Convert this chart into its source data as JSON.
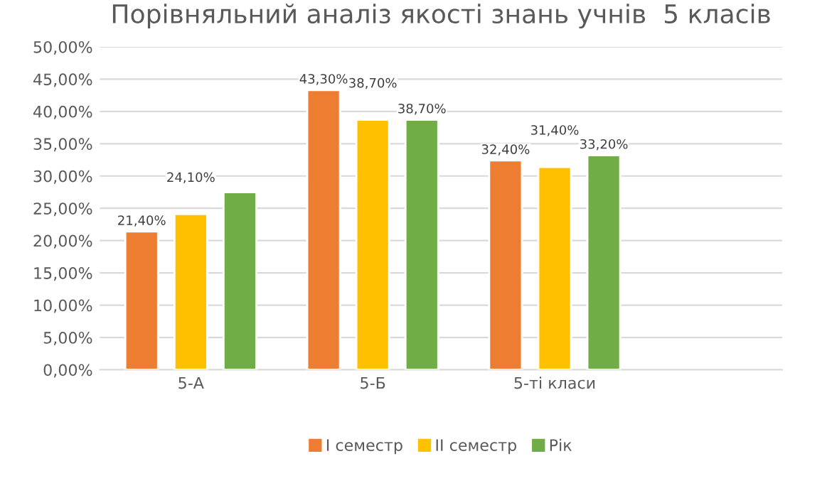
{
  "chart_data": {
    "type": "bar",
    "title": "Порівняльний аналіз якості знань учнів  5 класів",
    "categories": [
      "5-А",
      "5-Б",
      "5-ті класи"
    ],
    "series": [
      {
        "name": "І семестр",
        "color": "#ed7d31",
        "values": [
          21.4,
          43.3,
          32.4
        ],
        "value_labels": [
          "21,40%",
          "43,30%",
          "32,40%"
        ]
      },
      {
        "name": "ІІ семестр",
        "color": "#ffc000",
        "values": [
          24.1,
          38.7,
          31.4
        ],
        "value_labels": [
          "24,10%",
          "38,70%",
          "31,40%"
        ]
      },
      {
        "name": "Рік",
        "color": "#70ad47",
        "values": [
          27.5,
          38.7,
          33.2
        ],
        "value_labels": [
          null,
          "38,70%",
          "33,20%"
        ]
      }
    ],
    "ylim": [
      0,
      50
    ],
    "yticks": [
      {
        "value": 0,
        "label": "0,00%"
      },
      {
        "value": 5,
        "label": "5,00%"
      },
      {
        "value": 10,
        "label": "10,00%"
      },
      {
        "value": 15,
        "label": "15,00%"
      },
      {
        "value": 20,
        "label": "20,00%"
      },
      {
        "value": 25,
        "label": "25,00%"
      },
      {
        "value": 30,
        "label": "30,00%"
      },
      {
        "value": 35,
        "label": "35,00%"
      },
      {
        "value": 40,
        "label": "40,00%"
      },
      {
        "value": 45,
        "label": "45,00%"
      },
      {
        "value": 50,
        "label": "50,00%"
      }
    ],
    "grid": "y",
    "legend": "bottom"
  }
}
